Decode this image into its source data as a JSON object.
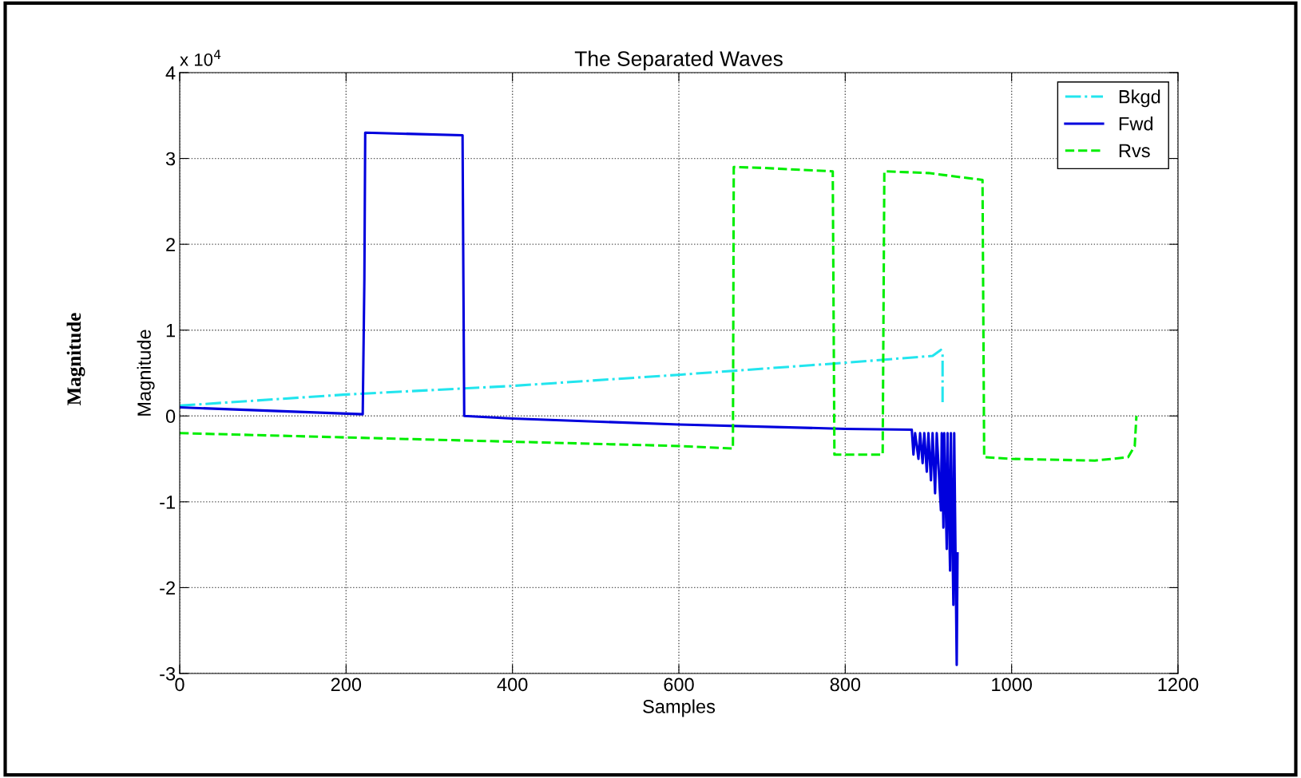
{
  "chart_data": {
    "type": "line",
    "title": "The Separated Waves",
    "xlabel": "Samples",
    "ylabel": "Magnitude",
    "annotations": [
      "x 10$^{4}$",
      "Magnitude"
    ],
    "xlim": [
      0,
      1200
    ],
    "xticks": [
      0,
      200,
      400,
      600,
      800,
      1000,
      1200
    ],
    "ylim": [
      -3,
      4
    ],
    "yticks": [
      -3,
      -2,
      -1,
      0,
      1,
      2,
      3,
      4
    ],
    "grid": true,
    "legend": "top right",
    "series": [
      {
        "name": "Bkgd",
        "color": "#22e5ee",
        "line_style": "dashdot",
        "x": [
          0,
          200,
          400,
          600,
          800,
          905,
          915,
          917,
          917
        ],
        "values": [
          0.12,
          0.25,
          0.35,
          0.48,
          0.62,
          0.7,
          0.77,
          0.72,
          0.15
        ]
      },
      {
        "name": "Fwd",
        "color": "#0000dd",
        "line_style": "solid",
        "x": [
          0,
          220,
          222,
          223,
          340,
          341,
          342,
          400,
          600,
          800,
          880,
          882,
          884,
          888,
          890,
          893,
          895,
          898,
          900,
          903,
          905,
          908,
          910,
          915,
          916,
          918,
          919,
          922,
          923,
          926,
          927,
          930,
          931,
          934,
          935
        ],
        "values": [
          0.1,
          0.02,
          1.6,
          3.3,
          3.27,
          1.6,
          0,
          -0.03,
          -0.1,
          -0.15,
          -0.16,
          -0.45,
          -0.2,
          -0.5,
          -0.2,
          -0.55,
          -0.2,
          -0.65,
          -0.2,
          -0.75,
          -0.2,
          -0.9,
          -0.2,
          -1.1,
          -0.2,
          -1.3,
          -0.2,
          -1.55,
          -0.2,
          -1.8,
          -0.2,
          -2.2,
          -0.2,
          -2.9,
          -1.6
        ]
      },
      {
        "name": "Rvs",
        "color": "#00ee00",
        "line_style": "dashed",
        "x": [
          0,
          200,
          400,
          600,
          665,
          666,
          700,
          785,
          787,
          845,
          847,
          900,
          965,
          967,
          1000,
          1100,
          1140,
          1148,
          1150
        ],
        "values": [
          -0.2,
          -0.25,
          -0.3,
          -0.35,
          -0.38,
          2.9,
          2.89,
          2.85,
          -0.45,
          -0.45,
          2.85,
          2.83,
          2.75,
          -0.48,
          -0.5,
          -0.52,
          -0.48,
          -0.35,
          0
        ]
      }
    ]
  }
}
